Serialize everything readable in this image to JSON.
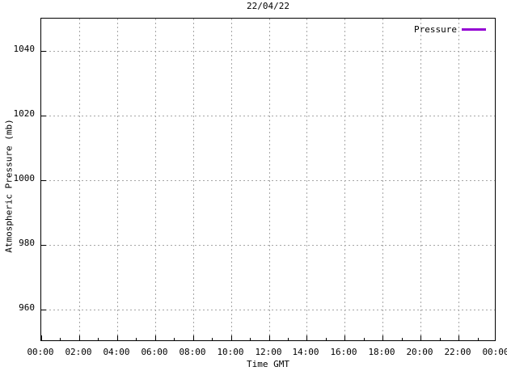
{
  "chart_data": {
    "type": "line",
    "title": "22/04/22",
    "xlabel": "Time GMT",
    "ylabel": "Atmospheric Pressure (mb)",
    "x_tick_labels": [
      "00:00",
      "02:00",
      "04:00",
      "06:00",
      "08:00",
      "10:00",
      "12:00",
      "14:00",
      "16:00",
      "18:00",
      "20:00",
      "22:00",
      "00:00"
    ],
    "x_minor_ticks_between_majors": 1,
    "y_ticks": [
      960,
      980,
      1000,
      1020,
      1040
    ],
    "ylim": [
      950,
      1050
    ],
    "grid": true,
    "grid_color": "#a6a6a6",
    "border_color": "#000000",
    "legend": {
      "position": "top-right-inside",
      "entries": [
        {
          "label": "Pressure",
          "color": "#9400d3"
        }
      ]
    },
    "series": [
      {
        "name": "Pressure",
        "color": "#9400d3",
        "x": [],
        "values": []
      }
    ]
  }
}
